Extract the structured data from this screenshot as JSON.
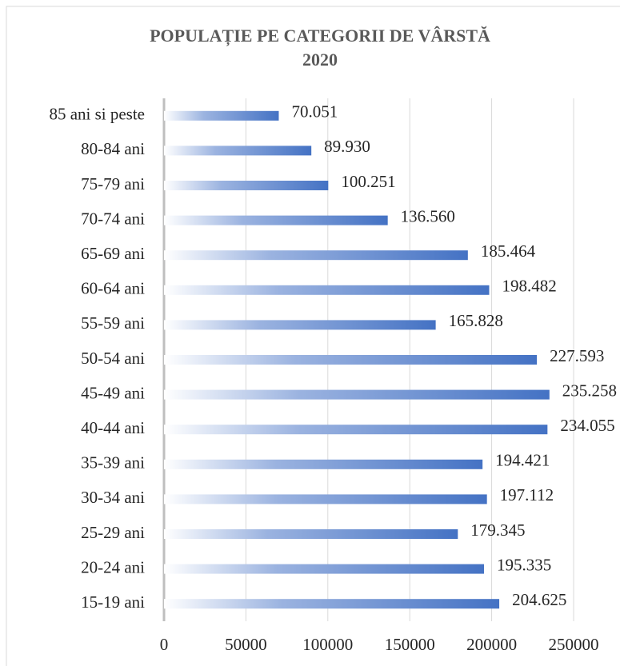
{
  "chart_data": {
    "type": "hbar",
    "title": [
      "POPULAȚIE PE CATEGORII DE VÂRSTĂ",
      "2020"
    ],
    "categories": [
      "85 ani si peste",
      "80-84 ani",
      "75-79 ani",
      "70-74 ani",
      "65-69 ani",
      "60-64 ani",
      "55-59 ani",
      "50-54 ani",
      "45-49 ani",
      "40-44 ani",
      "35-39 ani",
      "30-34 ani",
      "25-29 ani",
      "20-24 ani",
      "15-19 ani"
    ],
    "values": [
      70051,
      89930,
      100251,
      136560,
      185464,
      198482,
      165828,
      227593,
      235258,
      234055,
      194421,
      197112,
      179345,
      195335,
      204625
    ],
    "value_labels": [
      "70.051",
      "89.930",
      "100.251",
      "136.560",
      "185.464",
      "198.482",
      "165.828",
      "227.593",
      "235.258",
      "234.055",
      "194.421",
      "197.112",
      "179.345",
      "195.335",
      "204.625"
    ],
    "color": "#4472c4",
    "xlim": [
      0,
      250000
    ],
    "xticks": [
      0,
      50000,
      100000,
      150000,
      200000,
      250000
    ],
    "grid": true
  }
}
